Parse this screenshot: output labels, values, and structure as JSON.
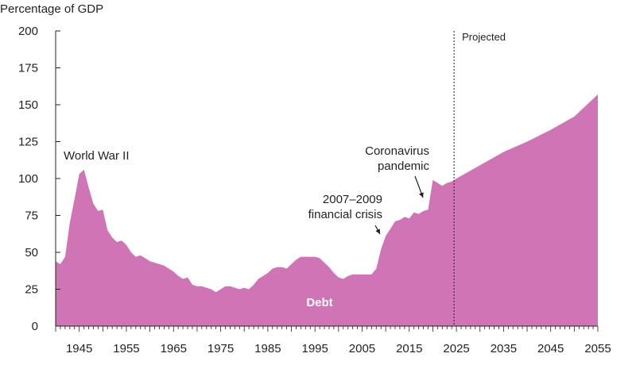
{
  "chart_data": {
    "type": "area",
    "ylabel": "Percentage of GDP",
    "ylim": [
      0,
      200
    ],
    "yticks": [
      0,
      25,
      50,
      75,
      100,
      125,
      150,
      175,
      200
    ],
    "xlim": [
      1940,
      2055
    ],
    "xticks": [
      1945,
      1955,
      1965,
      1975,
      1985,
      1995,
      2005,
      2015,
      2025,
      2035,
      2045,
      2055
    ],
    "grid": false,
    "colors": {
      "area": "#cf74b5",
      "text": "#231f20"
    },
    "series": [
      {
        "name": "Debt",
        "x": [
          1940,
          1941,
          1942,
          1943,
          1944,
          1945,
          1946,
          1947,
          1948,
          1949,
          1950,
          1951,
          1952,
          1953,
          1954,
          1955,
          1956,
          1957,
          1958,
          1959,
          1960,
          1961,
          1962,
          1963,
          1964,
          1965,
          1966,
          1967,
          1968,
          1969,
          1970,
          1971,
          1972,
          1973,
          1974,
          1975,
          1976,
          1977,
          1978,
          1979,
          1980,
          1981,
          1982,
          1983,
          1984,
          1985,
          1986,
          1987,
          1988,
          1989,
          1990,
          1991,
          1992,
          1993,
          1994,
          1995,
          1996,
          1997,
          1998,
          1999,
          2000,
          2001,
          2002,
          2003,
          2004,
          2005,
          2006,
          2007,
          2008,
          2009,
          2010,
          2011,
          2012,
          2013,
          2014,
          2015,
          2016,
          2017,
          2018,
          2019,
          2020,
          2021,
          2022,
          2023,
          2024,
          2025,
          2030,
          2035,
          2040,
          2045,
          2050,
          2055
        ],
        "values": [
          44,
          42,
          47,
          70,
          86,
          103,
          106,
          94,
          83,
          78,
          79,
          65,
          60,
          57,
          58,
          55,
          50,
          47,
          48,
          46,
          44,
          43,
          42,
          41,
          39,
          37,
          34,
          32,
          33,
          28,
          27,
          27,
          26,
          25,
          23,
          25,
          27,
          27,
          26,
          25,
          26,
          25,
          28,
          32,
          34,
          36,
          39,
          40,
          40,
          39,
          42,
          45,
          47,
          47,
          47,
          47,
          46,
          43,
          40,
          36,
          33,
          32,
          34,
          35,
          35,
          35,
          35,
          35,
          39,
          52,
          61,
          66,
          71,
          72,
          74,
          73,
          77,
          76,
          78,
          79,
          99,
          97,
          95,
          97,
          98,
          100,
          109,
          118,
          125,
          133,
          142,
          157
        ]
      }
    ],
    "series_label": "Debt",
    "projection_marker": {
      "x": 2024.5,
      "label": "Projected"
    },
    "annotations": [
      {
        "lines": [
          "World War II"
        ]
      },
      {
        "lines": [
          "2007–2009",
          "financial crisis"
        ]
      },
      {
        "lines": [
          "Coronavirus",
          "pandemic"
        ]
      }
    ]
  }
}
